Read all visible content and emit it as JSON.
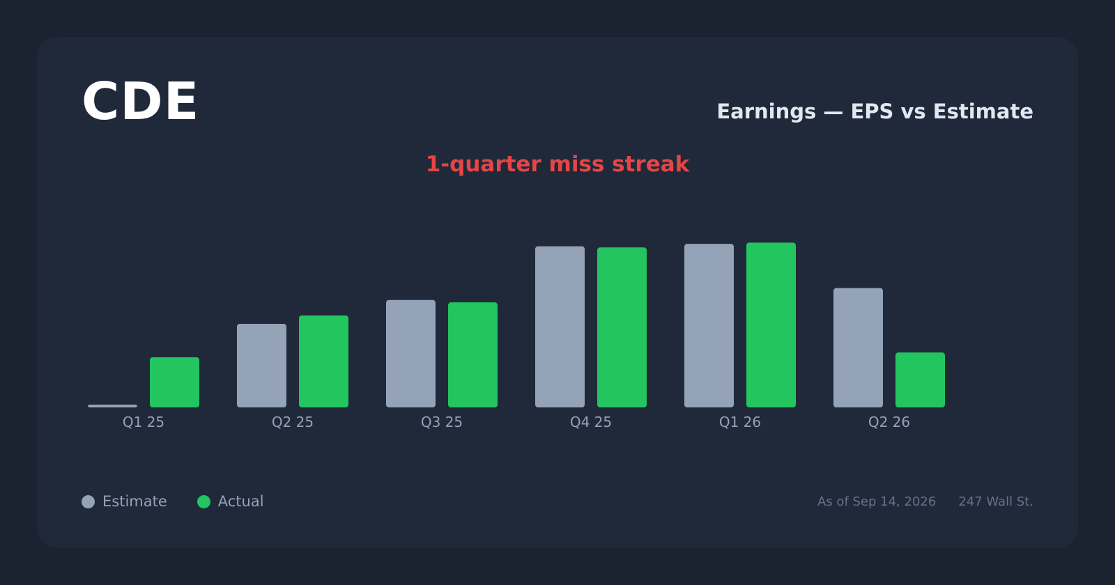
{
  "header": {
    "ticker": "CDE",
    "title": "Earnings — EPS vs Estimate",
    "streak": "1-quarter miss streak"
  },
  "legend": {
    "estimate": "Estimate",
    "actual": "Actual"
  },
  "footer": {
    "as_of": "As of Sep 14, 2026",
    "source": "247 Wall St."
  },
  "colors": {
    "estimate": "#94a3b8",
    "actual": "#22c55e",
    "miss": "#e64545"
  },
  "chart_data": {
    "type": "bar",
    "categories": [
      "Q1 25",
      "Q2 25",
      "Q3 25",
      "Q4 25",
      "Q1 26",
      "Q2 26"
    ],
    "series": [
      {
        "name": "Estimate",
        "values": [
          0.0,
          0.07,
          0.09,
          0.135,
          0.137,
          0.1
        ]
      },
      {
        "name": "Actual",
        "values": [
          0.042,
          0.077,
          0.088,
          0.134,
          0.138,
          0.046
        ]
      }
    ],
    "ylim": [
      0,
      0.14
    ],
    "grid": false,
    "legend": "bottom-left"
  }
}
